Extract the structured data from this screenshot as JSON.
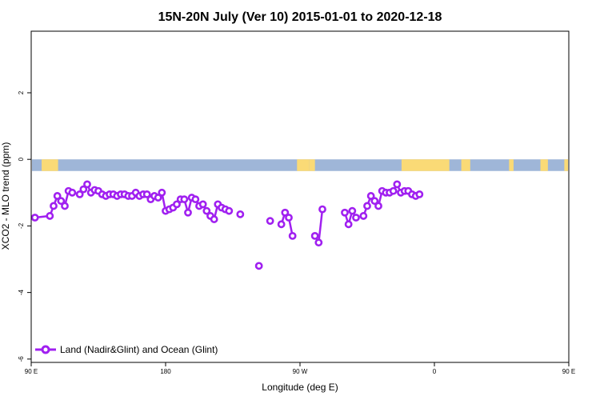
{
  "chart_data": {
    "type": "line",
    "title": "15N-20N July (Ver 10)   2015-01-01 to 2020-12-18",
    "xlabel": "Longitude (deg E)",
    "ylabel": "XCO2 - MLO trend (ppm)",
    "xlim": [
      90,
      450
    ],
    "ylim": [
      -6.1,
      3.85
    ],
    "x_ticks": [
      {
        "value": 90,
        "label": "90 E"
      },
      {
        "value": 180,
        "label": "180"
      },
      {
        "value": 270,
        "label": "90 W"
      },
      {
        "value": 360,
        "label": "0"
      },
      {
        "value": 450,
        "label": "90 E"
      },
      {
        "value": 540,
        "label": "180"
      }
    ],
    "y_ticks": [
      {
        "value": 2,
        "label": "2"
      },
      {
        "value": 0,
        "label": "0"
      },
      {
        "value": -2,
        "label": "-2"
      },
      {
        "value": -4,
        "label": "-4"
      },
      {
        "value": -6,
        "label": "-6"
      }
    ],
    "grid": false,
    "legend_position": "bottom-left",
    "land_strip": {
      "y_range": [
        -0.35,
        0.0
      ],
      "ocean_color": "#9fb6d8",
      "land_color": "#fada76",
      "land_x_ranges": [
        [
          97,
          108
        ],
        [
          268,
          276
        ],
        [
          276,
          280
        ],
        [
          338,
          370
        ],
        [
          378,
          384
        ],
        [
          410,
          413
        ],
        [
          431,
          436
        ],
        [
          447,
          450
        ]
      ]
    },
    "series": [
      {
        "name": "Land (Nadir&Glint) and Ocean (Glint)",
        "color": "#a020f0",
        "segments": [
          [
            [
              92.5,
              -1.75
            ],
            [
              102.5,
              -1.7
            ],
            [
              105,
              -1.4
            ],
            [
              107.5,
              -1.1
            ],
            [
              110,
              -1.25
            ],
            [
              112.5,
              -1.4
            ],
            [
              115,
              -0.95
            ],
            [
              117.5,
              -1.0
            ],
            [
              122.5,
              -1.05
            ],
            [
              125,
              -0.9
            ],
            [
              127.5,
              -0.75
            ],
            [
              130,
              -1.0
            ],
            [
              132.5,
              -0.92
            ],
            [
              135,
              -0.95
            ],
            [
              137.5,
              -1.05
            ],
            [
              140,
              -1.1
            ],
            [
              142.5,
              -1.05
            ],
            [
              145,
              -1.05
            ],
            [
              147.5,
              -1.1
            ],
            [
              150,
              -1.05
            ],
            [
              152.5,
              -1.05
            ],
            [
              155,
              -1.1
            ],
            [
              157.5,
              -1.1
            ],
            [
              160,
              -1.0
            ],
            [
              162.5,
              -1.1
            ],
            [
              165,
              -1.05
            ],
            [
              167.5,
              -1.05
            ],
            [
              170,
              -1.2
            ],
            [
              172.5,
              -1.1
            ],
            [
              175,
              -1.15
            ],
            [
              177.5,
              -1.0
            ],
            [
              180,
              -1.55
            ],
            [
              182.5,
              -1.5
            ],
            [
              185,
              -1.45
            ],
            [
              187.5,
              -1.35
            ],
            [
              190,
              -1.2
            ],
            [
              192.5,
              -1.2
            ],
            [
              195,
              -1.6
            ],
            [
              197.5,
              -1.15
            ],
            [
              200,
              -1.2
            ],
            [
              202.5,
              -1.4
            ],
            [
              205,
              -1.35
            ],
            [
              207.5,
              -1.55
            ],
            [
              210,
              -1.7
            ],
            [
              212.5,
              -1.8
            ],
            [
              215,
              -1.35
            ],
            [
              217.5,
              -1.45
            ],
            [
              220,
              -1.5
            ],
            [
              222.5,
              -1.55
            ]
          ],
          [
            [
              230,
              -1.65
            ]
          ],
          [
            [
              242.5,
              -3.2
            ]
          ],
          [
            [
              250,
              -1.85
            ]
          ],
          [
            [
              257.5,
              -1.95
            ],
            [
              260,
              -1.6
            ],
            [
              262.5,
              -1.75
            ],
            [
              265,
              -2.3
            ]
          ],
          [
            [
              280,
              -2.3
            ],
            [
              282.5,
              -2.5
            ],
            [
              285,
              -1.5
            ]
          ],
          [
            [
              300,
              -1.6
            ],
            [
              302.5,
              -1.95
            ],
            [
              305,
              -1.55
            ],
            [
              307.5,
              -1.75
            ]
          ],
          [
            [
              312.5,
              -1.7
            ],
            [
              315,
              -1.4
            ],
            [
              317.5,
              -1.1
            ],
            [
              320,
              -1.25
            ],
            [
              322.5,
              -1.4
            ],
            [
              325,
              -0.95
            ],
            [
              327.5,
              -1.0
            ],
            [
              330,
              -1.0
            ],
            [
              332.5,
              -0.95
            ],
            [
              335,
              -0.75
            ],
            [
              337.5,
              -1.0
            ],
            [
              340,
              -0.95
            ],
            [
              342.5,
              -0.95
            ],
            [
              345,
              -1.05
            ],
            [
              347.5,
              -1.1
            ],
            [
              350,
              -1.05
            ]
          ]
        ]
      }
    ]
  }
}
